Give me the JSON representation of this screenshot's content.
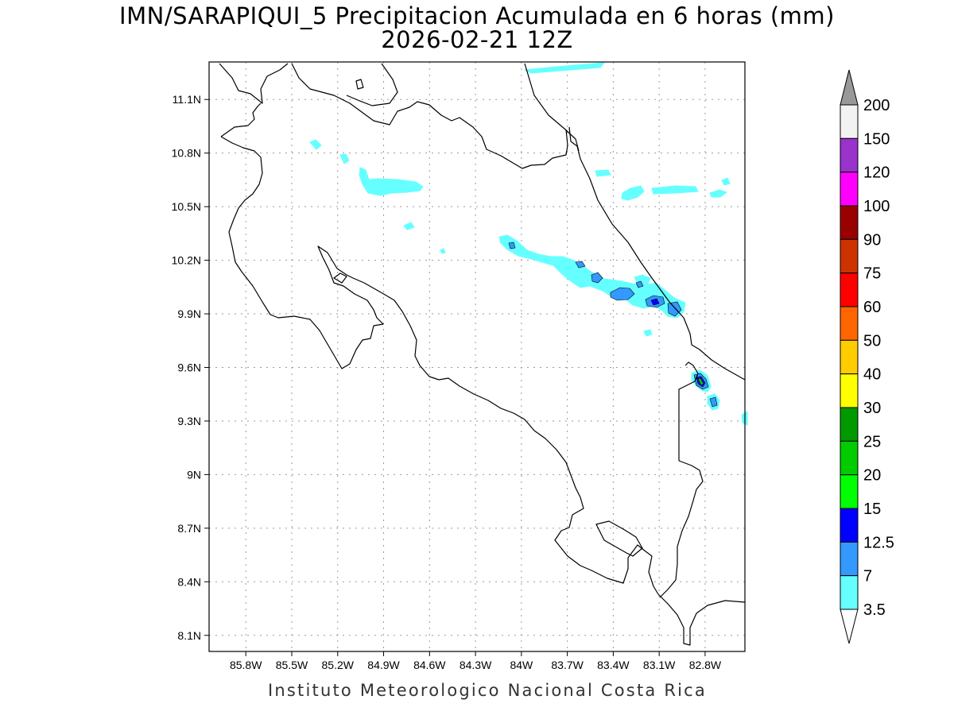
{
  "title": {
    "line1": "IMN/SARAPIQUI_5 Precipitacion Acumulada en 6 horas (mm)",
    "line2": "2026-02-21 12Z"
  },
  "footer": "Instituto Meteorologico Nacional Costa Rica",
  "map": {
    "lon_range": [
      -86.04,
      -82.54
    ],
    "lat_range": [
      8.01,
      11.31
    ],
    "lon_ticks": [
      {
        "value": -85.8,
        "label": "85.8W"
      },
      {
        "value": -85.5,
        "label": "85.5W"
      },
      {
        "value": -85.2,
        "label": "85.2W"
      },
      {
        "value": -84.9,
        "label": "84.9W"
      },
      {
        "value": -84.6,
        "label": "84.6W"
      },
      {
        "value": -84.3,
        "label": "84.3W"
      },
      {
        "value": -84.0,
        "label": "84W"
      },
      {
        "value": -83.7,
        "label": "83.7W"
      },
      {
        "value": -83.4,
        "label": "83.4W"
      },
      {
        "value": -83.1,
        "label": "83.1W"
      },
      {
        "value": -82.8,
        "label": "82.8W"
      }
    ],
    "lat_ticks": [
      {
        "value": 8.1,
        "label": "8.1N"
      },
      {
        "value": 8.4,
        "label": "8.4N"
      },
      {
        "value": 8.7,
        "label": "8.7N"
      },
      {
        "value": 9.0,
        "label": "9N"
      },
      {
        "value": 9.3,
        "label": "9.3N"
      },
      {
        "value": 9.6,
        "label": "9.6N"
      },
      {
        "value": 9.9,
        "label": "9.9N"
      },
      {
        "value": 10.2,
        "label": "10.2N"
      },
      {
        "value": 10.5,
        "label": "10.5N"
      },
      {
        "value": 10.8,
        "label": "10.8N"
      },
      {
        "value": 11.1,
        "label": "11.1N"
      }
    ],
    "grid": true
  },
  "colorbar": {
    "levels": [
      {
        "label": "3.5",
        "color": "#66ffff"
      },
      {
        "label": "7",
        "color": "#3399ff"
      },
      {
        "label": "12.5",
        "color": "#0000ff"
      },
      {
        "label": "15",
        "color": "#00ff00"
      },
      {
        "label": "20",
        "color": "#00cc00"
      },
      {
        "label": "25",
        "color": "#009900"
      },
      {
        "label": "30",
        "color": "#ffff00"
      },
      {
        "label": "40",
        "color": "#ffcc00"
      },
      {
        "label": "50",
        "color": "#ff6600"
      },
      {
        "label": "60",
        "color": "#ff0000"
      },
      {
        "label": "75",
        "color": "#cc3300"
      },
      {
        "label": "90",
        "color": "#990000"
      },
      {
        "label": "100",
        "color": "#ff00ff"
      },
      {
        "label": "120",
        "color": "#9933cc"
      },
      {
        "label": "150",
        "color": "#f2f2f2"
      },
      {
        "label": "200",
        "color": "#999999"
      }
    ],
    "bottom_cap_color": "#ffffff"
  },
  "precip_color_light": "#66ffff",
  "precip_color_mid": "#3399ff",
  "precip_color_high": "#0000ff",
  "precip_color_peak": "#00cc00"
}
